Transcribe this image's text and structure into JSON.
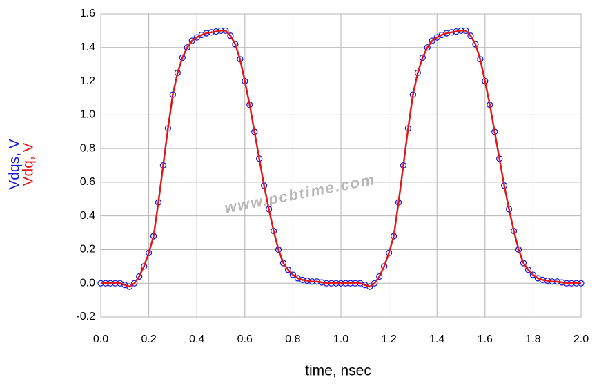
{
  "chart_data": {
    "type": "line",
    "xlabel": "time, nsec",
    "annotation": "www.pcbtime.com",
    "x": [
      0,
      0.02,
      0.04,
      0.06,
      0.08,
      0.1,
      0.12,
      0.14,
      0.16,
      0.18,
      0.2,
      0.22,
      0.24,
      0.26,
      0.28,
      0.3,
      0.32,
      0.34,
      0.36,
      0.38,
      0.4,
      0.42,
      0.44,
      0.46,
      0.48,
      0.5,
      0.52,
      0.54,
      0.56,
      0.58,
      0.6,
      0.62,
      0.64,
      0.66,
      0.68,
      0.7,
      0.72,
      0.74,
      0.76,
      0.78,
      0.8,
      0.82,
      0.84,
      0.86,
      0.88,
      0.9,
      0.92,
      0.94,
      0.96,
      0.98,
      1,
      1.02,
      1.04,
      1.06,
      1.08,
      1.1,
      1.12,
      1.14,
      1.16,
      1.18,
      1.2,
      1.22,
      1.24,
      1.26,
      1.28,
      1.3,
      1.32,
      1.34,
      1.36,
      1.38,
      1.4,
      1.42,
      1.44,
      1.46,
      1.48,
      1.5,
      1.52,
      1.54,
      1.56,
      1.58,
      1.6,
      1.62,
      1.64,
      1.66,
      1.68,
      1.7,
      1.72,
      1.74,
      1.76,
      1.78,
      1.8,
      1.82,
      1.84,
      1.86,
      1.88,
      1.9,
      1.92,
      1.94,
      1.96,
      1.98,
      2
    ],
    "series": [
      {
        "name": "Vdqs, V",
        "color": "#1a1adc",
        "marker": "circle",
        "values": [
          0,
          0,
          0,
          0,
          0,
          -0.01,
          -0.02,
          0,
          0.04,
          0.1,
          0.18,
          0.28,
          0.48,
          0.7,
          0.92,
          1.12,
          1.25,
          1.34,
          1.4,
          1.44,
          1.46,
          1.475,
          1.485,
          1.49,
          1.495,
          1.5,
          1.5,
          1.47,
          1.42,
          1.33,
          1.2,
          1.06,
          0.9,
          0.74,
          0.58,
          0.44,
          0.31,
          0.2,
          0.12,
          0.08,
          0.05,
          0.03,
          0.02,
          0.015,
          0.01,
          0.01,
          0.005,
          0,
          0,
          0,
          0,
          0,
          0,
          0,
          0,
          -0.01,
          -0.02,
          0,
          0.04,
          0.1,
          0.18,
          0.28,
          0.48,
          0.7,
          0.92,
          1.12,
          1.25,
          1.34,
          1.4,
          1.44,
          1.46,
          1.475,
          1.485,
          1.49,
          1.495,
          1.5,
          1.5,
          1.47,
          1.42,
          1.33,
          1.2,
          1.06,
          0.9,
          0.74,
          0.58,
          0.44,
          0.31,
          0.2,
          0.12,
          0.08,
          0.05,
          0.03,
          0.02,
          0.015,
          0.01,
          0.01,
          0.005,
          0,
          0,
          0,
          0
        ]
      },
      {
        "name": "Vdq, V",
        "color": "#e01818",
        "marker": "line",
        "values": [
          0,
          0,
          0,
          0,
          0,
          -0.01,
          -0.02,
          0,
          0.04,
          0.1,
          0.18,
          0.28,
          0.48,
          0.7,
          0.92,
          1.12,
          1.25,
          1.34,
          1.4,
          1.44,
          1.46,
          1.475,
          1.485,
          1.49,
          1.495,
          1.5,
          1.5,
          1.47,
          1.42,
          1.33,
          1.2,
          1.06,
          0.9,
          0.74,
          0.58,
          0.44,
          0.31,
          0.2,
          0.12,
          0.08,
          0.05,
          0.03,
          0.02,
          0.015,
          0.01,
          0.01,
          0.005,
          0,
          0,
          0,
          0,
          0,
          0,
          0,
          0,
          -0.01,
          -0.02,
          0,
          0.04,
          0.1,
          0.18,
          0.28,
          0.48,
          0.7,
          0.92,
          1.12,
          1.25,
          1.34,
          1.4,
          1.44,
          1.46,
          1.475,
          1.485,
          1.49,
          1.495,
          1.5,
          1.5,
          1.47,
          1.42,
          1.33,
          1.2,
          1.06,
          0.9,
          0.74,
          0.58,
          0.44,
          0.31,
          0.2,
          0.12,
          0.08,
          0.05,
          0.03,
          0.02,
          0.015,
          0.01,
          0.01,
          0.005,
          0,
          0,
          0,
          0
        ]
      }
    ],
    "xlim": [
      0,
      2
    ],
    "xticks": [
      {
        "value": 0,
        "label": "0.0"
      },
      0.2,
      0.4,
      0.6,
      0.8,
      {
        "value": 1,
        "label": "1.0"
      },
      1.2,
      1.4,
      1.6,
      1.8,
      {
        "value": 2,
        "label": "2.0"
      }
    ],
    "ylim": [
      -0.2,
      1.6
    ],
    "yticks": [
      -0.2,
      {
        "value": 0,
        "label": "0.0"
      },
      0.2,
      0.4,
      0.6,
      0.8,
      {
        "value": 1,
        "label": "1.0"
      },
      1.2,
      1.4,
      1.6
    ],
    "grid": true
  }
}
